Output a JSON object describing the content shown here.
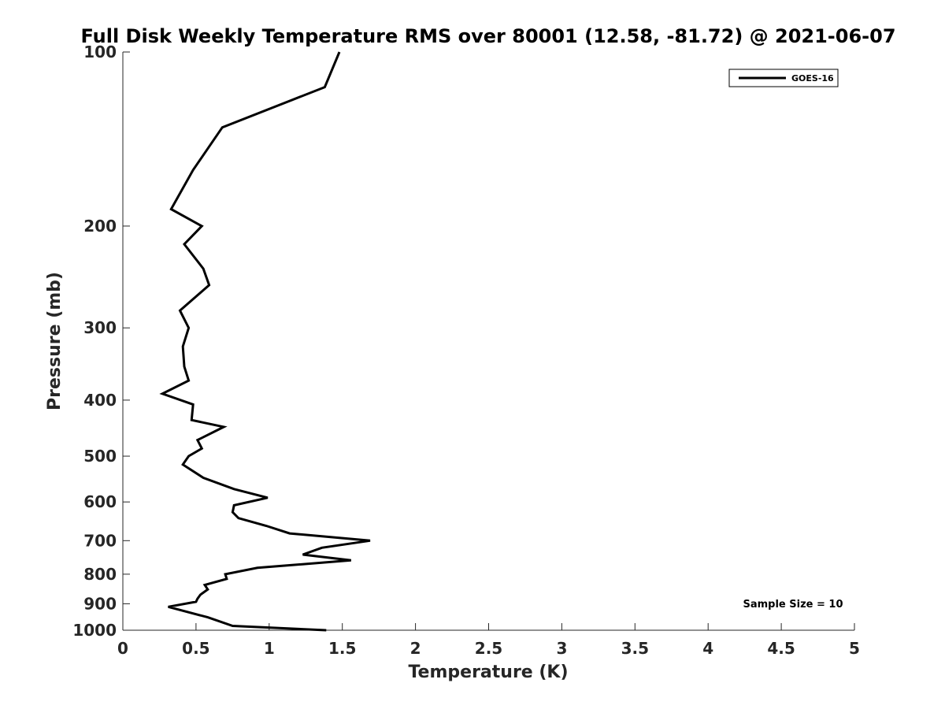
{
  "chart_data": {
    "type": "line",
    "title": "Full Disk Weekly Temperature RMS over 80001 (12.58, -81.72) @ 2021-06-07",
    "xlabel": "Temperature (K)",
    "ylabel": "Pressure (mb)",
    "xlim": [
      0,
      5
    ],
    "ylim": [
      1000,
      100
    ],
    "yscale": "log",
    "x_ticks": [
      0,
      0.5,
      1,
      1.5,
      2,
      2.5,
      3,
      3.5,
      4,
      4.5,
      5
    ],
    "x_tick_labels": [
      "0",
      "0.5",
      "1",
      "1.5",
      "2",
      "2.5",
      "3",
      "3.5",
      "4",
      "4.5",
      "5"
    ],
    "y_ticks": [
      100,
      200,
      300,
      400,
      500,
      600,
      700,
      800,
      900,
      1000
    ],
    "y_tick_labels": [
      "100",
      "200",
      "300",
      "400",
      "500",
      "600",
      "700",
      "800",
      "900",
      "1000"
    ],
    "grid": false,
    "legend_position": "top-right",
    "series": [
      {
        "name": "GOES-16",
        "color": "#000000",
        "points": [
          [
            1.48,
            100
          ],
          [
            1.38,
            115
          ],
          [
            0.68,
            135
          ],
          [
            0.48,
            160
          ],
          [
            0.33,
            187
          ],
          [
            0.54,
            200
          ],
          [
            0.42,
            215
          ],
          [
            0.55,
            237
          ],
          [
            0.59,
            253
          ],
          [
            0.39,
            280
          ],
          [
            0.45,
            300
          ],
          [
            0.41,
            323
          ],
          [
            0.42,
            350
          ],
          [
            0.45,
            370
          ],
          [
            0.27,
            390
          ],
          [
            0.48,
            407
          ],
          [
            0.47,
            433
          ],
          [
            0.69,
            445
          ],
          [
            0.51,
            469
          ],
          [
            0.54,
            485
          ],
          [
            0.45,
            500
          ],
          [
            0.41,
            517
          ],
          [
            0.55,
            545
          ],
          [
            0.76,
            570
          ],
          [
            0.99,
            590
          ],
          [
            0.76,
            608
          ],
          [
            0.75,
            625
          ],
          [
            0.79,
            640
          ],
          [
            0.98,
            660
          ],
          [
            1.14,
            680
          ],
          [
            1.69,
            700
          ],
          [
            1.36,
            720
          ],
          [
            1.23,
            740
          ],
          [
            1.56,
            757
          ],
          [
            0.92,
            780
          ],
          [
            0.7,
            800
          ],
          [
            0.71,
            815
          ],
          [
            0.56,
            835
          ],
          [
            0.58,
            850
          ],
          [
            0.53,
            868
          ],
          [
            0.51,
            882
          ],
          [
            0.5,
            893
          ],
          [
            0.31,
            911
          ],
          [
            0.58,
            950
          ],
          [
            0.75,
            983
          ],
          [
            1.39,
            1000
          ]
        ]
      }
    ],
    "annotation": "Sample Size = 10"
  }
}
